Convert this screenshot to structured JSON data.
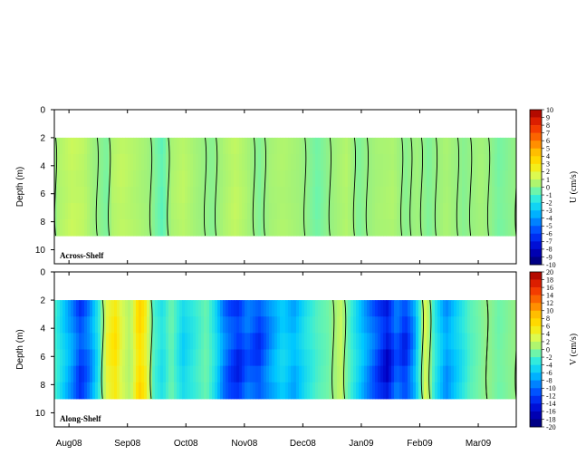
{
  "chart_data": [
    {
      "type": "heatmap",
      "panel_label": "Across-Shelf",
      "ylabel": "Depth (m)",
      "y_ticks": [
        "0",
        "2",
        "4",
        "6",
        "8",
        "10"
      ],
      "ylim": [
        0,
        11
      ],
      "data_depth_range": [
        2,
        9
      ],
      "colorbar_label": "U (cm/s)",
      "colorbar_ticks": [
        "10",
        "9",
        "8",
        "7",
        "6",
        "5",
        "4",
        "3",
        "2",
        "1",
        "0",
        "-1",
        "-2",
        "-3",
        "-4",
        "-5",
        "-6",
        "-7",
        "-8",
        "-9",
        "-10"
      ],
      "colorbar_range": [
        -10,
        10
      ],
      "x_ticks": [
        "Aug08",
        "Sep08",
        "Oct08",
        "Nov08",
        "Dec08",
        "Jan09",
        "Feb09",
        "Mar09"
      ],
      "x_range_months": [
        0,
        7.9
      ],
      "profile": [
        [
          0.0,
          -0.2
        ],
        [
          0.08,
          0.5
        ],
        [
          0.3,
          1.0
        ],
        [
          0.5,
          0.8
        ],
        [
          0.65,
          0.2
        ],
        [
          0.9,
          -0.4
        ],
        [
          1.0,
          0.6
        ],
        [
          1.15,
          0.9
        ],
        [
          1.4,
          0.5
        ],
        [
          1.6,
          0.2
        ],
        [
          1.85,
          -0.8
        ],
        [
          2.0,
          0.4
        ],
        [
          2.2,
          0.8
        ],
        [
          2.4,
          0.3
        ],
        [
          2.7,
          -0.2
        ],
        [
          2.9,
          0.4
        ],
        [
          3.1,
          0.9
        ],
        [
          3.3,
          0.4
        ],
        [
          3.5,
          -0.3
        ],
        [
          3.7,
          0.3
        ],
        [
          3.9,
          0.5
        ],
        [
          4.2,
          0.2
        ],
        [
          4.5,
          -0.5
        ],
        [
          4.8,
          0.2
        ],
        [
          5.0,
          0.6
        ],
        [
          5.2,
          -0.3
        ],
        [
          5.5,
          0.3
        ],
        [
          5.8,
          0.5
        ],
        [
          6.0,
          -0.2
        ],
        [
          6.2,
          0.2
        ],
        [
          6.4,
          -0.3
        ],
        [
          6.7,
          0.4
        ],
        [
          7.0,
          -0.2
        ],
        [
          7.3,
          0.3
        ],
        [
          7.6,
          -0.4
        ],
        [
          7.9,
          0.0
        ]
      ]
    },
    {
      "type": "heatmap",
      "panel_label": "Along-Shelf",
      "ylabel": "Depth (m)",
      "y_ticks": [
        "0",
        "2",
        "4",
        "6",
        "8",
        "10"
      ],
      "ylim": [
        0,
        11
      ],
      "data_depth_range": [
        2,
        9
      ],
      "colorbar_label": "V (cm/s)",
      "colorbar_ticks": [
        "20",
        "18",
        "16",
        "14",
        "12",
        "10",
        "8",
        "6",
        "4",
        "2",
        "0",
        "-2",
        "-4",
        "-6",
        "-8",
        "-10",
        "-12",
        "-14",
        "-16",
        "-18",
        "-20"
      ],
      "colorbar_range": [
        -20,
        20
      ],
      "x_ticks": [
        "Aug08",
        "Sep08",
        "Oct08",
        "Nov08",
        "Dec08",
        "Jan09",
        "Feb09",
        "Mar09"
      ],
      "x_range_months": [
        0,
        7.9
      ],
      "profile": [
        [
          0.0,
          -2
        ],
        [
          0.3,
          -8
        ],
        [
          0.45,
          -12
        ],
        [
          0.6,
          -9
        ],
        [
          0.75,
          -4
        ],
        [
          0.9,
          4
        ],
        [
          1.05,
          6
        ],
        [
          1.15,
          3
        ],
        [
          1.3,
          1
        ],
        [
          1.45,
          7
        ],
        [
          1.55,
          5
        ],
        [
          1.7,
          -2
        ],
        [
          1.85,
          -4
        ],
        [
          2.0,
          -1
        ],
        [
          2.2,
          -5
        ],
        [
          2.4,
          -3
        ],
        [
          2.6,
          -1
        ],
        [
          2.75,
          -4
        ],
        [
          2.9,
          -9
        ],
        [
          3.0,
          -11
        ],
        [
          3.15,
          -13
        ],
        [
          3.3,
          -10
        ],
        [
          3.5,
          -12
        ],
        [
          3.7,
          -8
        ],
        [
          3.9,
          -5
        ],
        [
          4.1,
          -7
        ],
        [
          4.3,
          -4
        ],
        [
          4.5,
          -2
        ],
        [
          4.7,
          -1
        ],
        [
          4.9,
          2
        ],
        [
          5.0,
          -1
        ],
        [
          5.2,
          -5
        ],
        [
          5.4,
          -9
        ],
        [
          5.55,
          -12
        ],
        [
          5.7,
          -15
        ],
        [
          5.85,
          -10
        ],
        [
          6.0,
          -13
        ],
        [
          6.15,
          -8
        ],
        [
          6.35,
          3
        ],
        [
          6.5,
          -3
        ],
        [
          6.7,
          -8
        ],
        [
          6.9,
          -5
        ],
        [
          7.1,
          -2
        ],
        [
          7.4,
          0
        ],
        [
          7.6,
          -1
        ],
        [
          7.9,
          0
        ]
      ]
    }
  ]
}
